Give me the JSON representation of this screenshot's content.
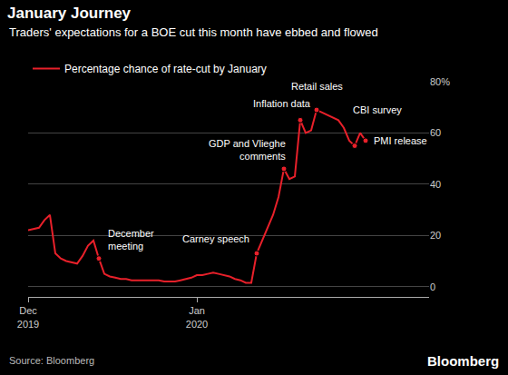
{
  "chart_data": {
    "type": "line",
    "title": "January Journey",
    "subtitle": "Traders' expectations for a BOE cut this month have ebbed and flowed",
    "source": "Source: Bloomberg",
    "credit": "Bloomberg",
    "categories": [
      "Dec\n2019",
      null,
      null,
      null,
      null,
      null,
      null,
      null,
      null,
      null,
      null,
      null,
      null,
      null,
      null,
      null,
      null,
      null,
      null,
      null,
      null,
      null,
      null,
      null,
      null,
      null,
      null,
      null,
      null,
      null,
      null,
      "Jan\n2020",
      null,
      null,
      null,
      null,
      null,
      null,
      null,
      null,
      null,
      null,
      null,
      null,
      null,
      null,
      null,
      null,
      null,
      null,
      null,
      null,
      null,
      null,
      null,
      null,
      null,
      null,
      null,
      null,
      null,
      null,
      null
    ],
    "series": [
      {
        "name": "Percentage chance of rate-cut by January",
        "color": "#e8202a",
        "values": [
          22,
          22.5,
          23,
          26,
          28,
          13,
          11,
          10,
          9.5,
          9,
          12,
          16,
          18,
          11,
          5,
          4,
          3.5,
          3,
          3,
          2.5,
          2.5,
          2.5,
          2.5,
          2.5,
          2.5,
          2,
          2,
          2,
          2.5,
          3,
          3.5,
          4.5,
          4.5,
          5,
          5.5,
          5,
          4.5,
          4,
          3,
          2.5,
          1.5,
          1.5,
          13,
          18,
          23,
          28,
          35,
          46,
          42,
          43,
          65,
          60,
          61,
          69,
          68,
          67,
          66,
          65,
          62,
          57,
          55,
          60,
          57
        ]
      }
    ],
    "annotations": [
      {
        "text": "December\nmeeting",
        "x": 13
      },
      {
        "text": "Carney speech",
        "x": 42
      },
      {
        "text": "GDP and Vlieghe\ncomments",
        "x": 47
      },
      {
        "text": "Inflation data",
        "x": 50
      },
      {
        "text": "Retail sales",
        "x": 53
      },
      {
        "text": "CBI survey",
        "x": 60
      },
      {
        "text": "PMI release",
        "x": 62
      }
    ],
    "ylim": [
      -4,
      80
    ],
    "yticks": [
      0,
      20,
      40,
      60,
      {
        "value": 80,
        "label": "80%"
      }
    ],
    "grid": true,
    "legend": "top-left"
  }
}
